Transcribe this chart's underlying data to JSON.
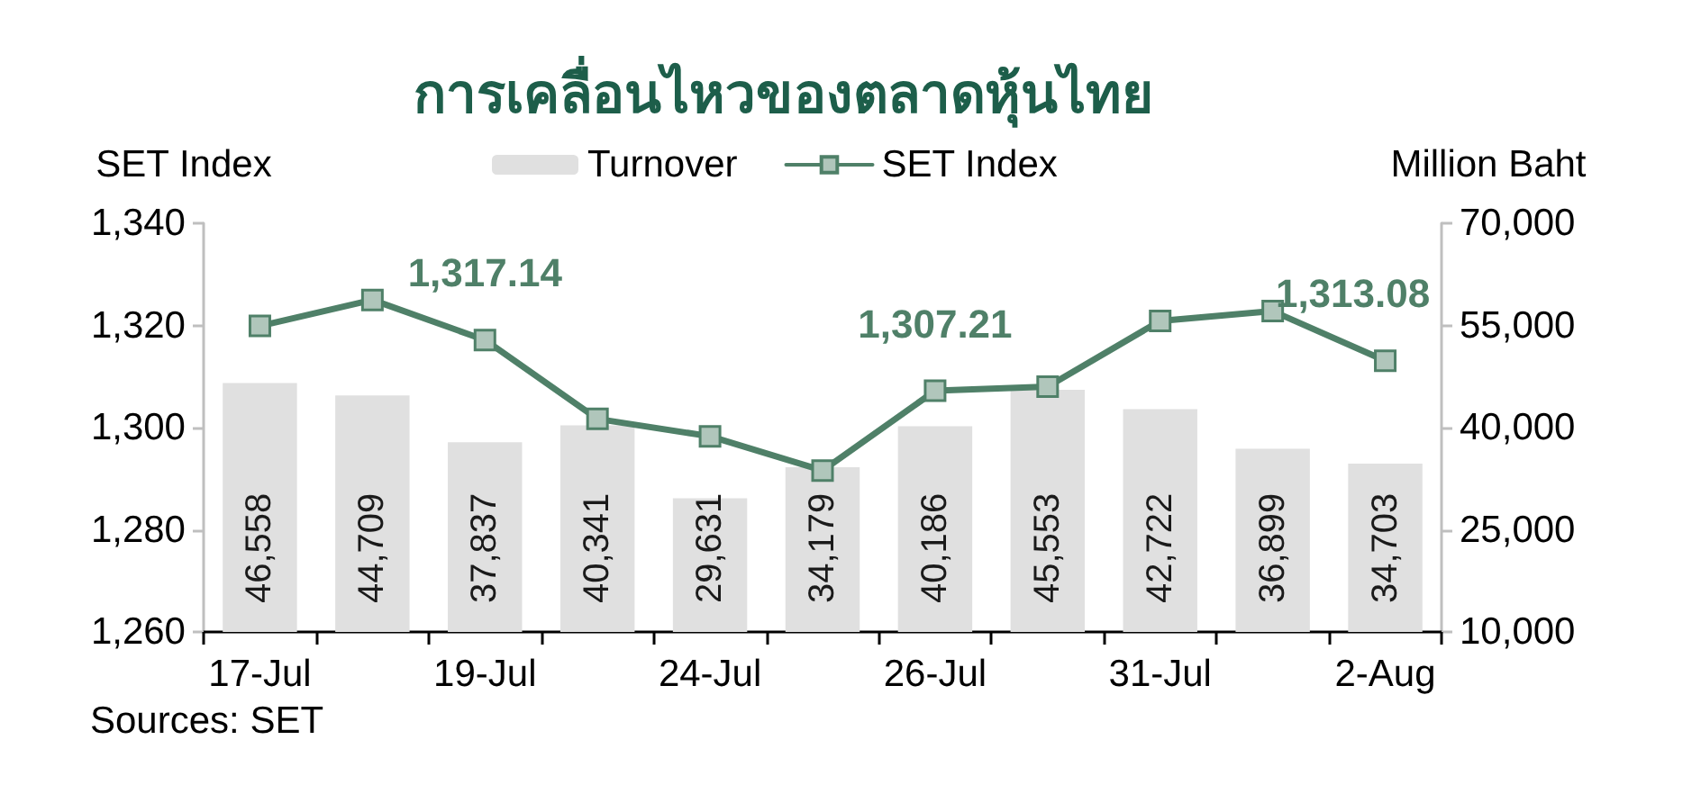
{
  "chart_data": {
    "type": "bar",
    "title": "การเคลื่อนไหวของตลาดหุ้นไทย",
    "ylabel": "SET Index",
    "y2label": "Million Baht",
    "annotations": [
      "Sources: SET"
    ],
    "categories": [
      "17-Jul",
      null,
      "19-Jul",
      null,
      "24-Jul",
      null,
      "26-Jul",
      null,
      "31-Jul",
      null,
      "2-Aug"
    ],
    "series": [
      {
        "name": "Turnover",
        "axis": "y2",
        "color": "#e0e0e0",
        "values": [
          46558,
          44709,
          37837,
          40341,
          29631,
          34179,
          40186,
          45553,
          42722,
          36899,
          34703
        ],
        "value_labels": [
          "46,558",
          "44,709",
          "37,837",
          "40,341",
          "29,631",
          "34,179",
          "40,186",
          "45,553",
          "42,722",
          "36,899",
          "34,703"
        ]
      },
      {
        "name": "SET Index",
        "type": "line",
        "color": "#4f8068",
        "values": [
          1319.9,
          1325.0,
          1317.14,
          1301.7,
          1298.3,
          1291.6,
          1307.21,
          1308.0,
          1320.9,
          1322.8,
          1313.08
        ],
        "value_labels": [
          null,
          null,
          "1,317.14",
          null,
          null,
          null,
          "1,307.21",
          null,
          null,
          null,
          "1,313.08"
        ]
      }
    ],
    "ylim": [
      1260,
      1340
    ],
    "yticks": [
      {
        "value": 1260,
        "label": "1,260"
      },
      {
        "value": 1280,
        "label": "1,280"
      },
      {
        "value": 1300,
        "label": "1,300"
      },
      {
        "value": 1320,
        "label": "1,320"
      },
      {
        "value": 1340,
        "label": "1,340"
      }
    ],
    "y2lim": [
      10000,
      70000
    ],
    "y2ticks": [
      {
        "value": 10000,
        "label": "10,000"
      },
      {
        "value": 25000,
        "label": "25,000"
      },
      {
        "value": 40000,
        "label": "40,000"
      },
      {
        "value": 55000,
        "label": "55,000"
      },
      {
        "value": 70000,
        "label": "70,000"
      }
    ],
    "legend": "top",
    "marker": "square",
    "line_style": "solid"
  }
}
